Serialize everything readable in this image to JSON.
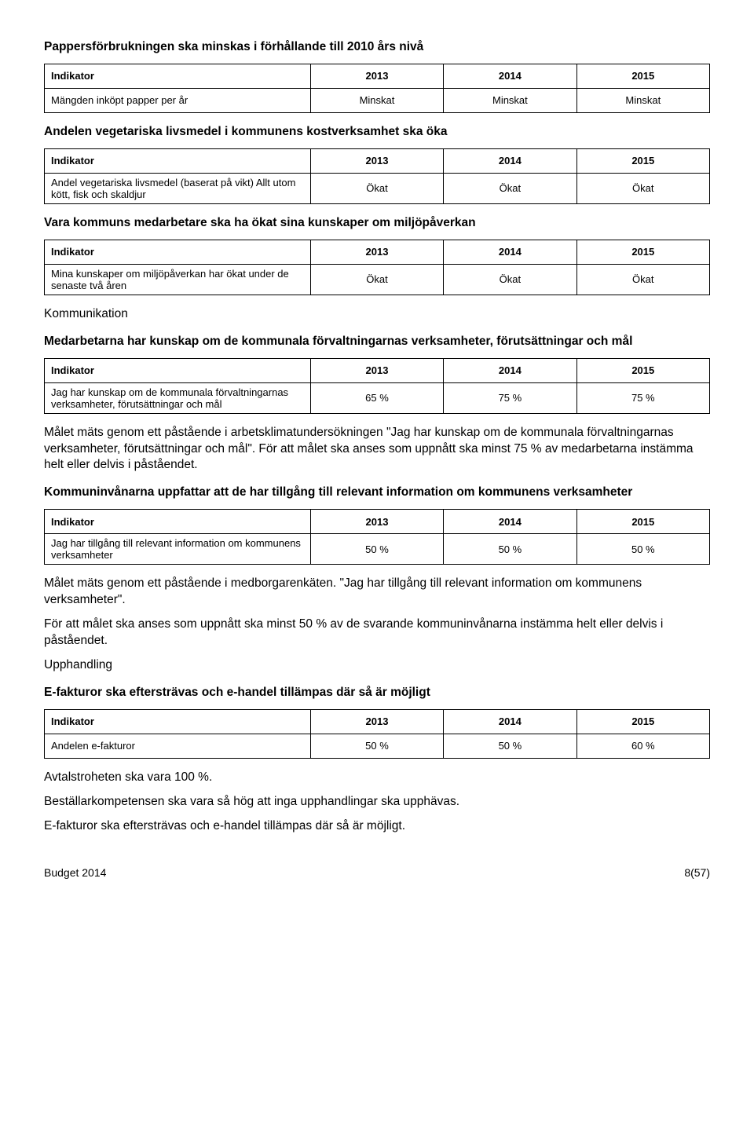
{
  "labels": {
    "indikator": "Indikator",
    "y2013": "2013",
    "y2014": "2014",
    "y2015": "2015"
  },
  "sec1": {
    "title": "Pappersförbrukningen ska minskas i förhållande till 2010 års nivå",
    "row": {
      "label": "Mängden inköpt papper per år",
      "v2013": "Minskat",
      "v2014": "Minskat",
      "v2015": "Minskat"
    }
  },
  "sec2": {
    "title": "Andelen vegetariska livsmedel i kommunens kostverksamhet ska öka",
    "row": {
      "label": "Andel vegetariska livsmedel (baserat på vikt) Allt utom kött, fisk och skaldjur",
      "v2013": "Ökat",
      "v2014": "Ökat",
      "v2015": "Ökat"
    }
  },
  "sec3": {
    "title": "Vara kommuns medarbetare ska ha ökat sina kunskaper om miljöpåverkan",
    "row": {
      "label": "Mina kunskaper om miljöpåverkan har ökat under de senaste två åren",
      "v2013": "Ökat",
      "v2014": "Ökat",
      "v2015": "Ökat"
    }
  },
  "komm": {
    "label": "Kommunikation",
    "title": "Medarbetarna har kunskap om de kommunala förvaltningarnas verksamheter, förutsättningar och mål",
    "row": {
      "label": "Jag har kunskap om de kommunala förvaltningarnas verksamheter, förutsättningar och mål",
      "v2013": "65 %",
      "v2014": "75 %",
      "v2015": "75 %"
    },
    "para1": "Målet mäts genom ett påstående i arbetsklimatundersökningen \"Jag har kunskap om de kommunala förvaltningarnas verksamheter, förutsättningar och mål\". För att målet ska anses som uppnått ska minst 75 % av medarbetarna instämma helt eller delvis i påståendet.",
    "title2": "Kommuninvånarna uppfattar att de har tillgång till relevant information om kommunens verksamheter",
    "row2": {
      "label": "Jag har tillgång till relevant information om kommunens verksamheter",
      "v2013": "50 %",
      "v2014": "50 %",
      "v2015": "50 %"
    },
    "para2": "Målet mäts genom ett påstående i medborgarenkäten. \"Jag har tillgång till relevant information om kommunens verksamheter\".",
    "para3": "För att målet ska anses som uppnått ska minst 50 % av de svarande kommuninvånarna instämma helt eller delvis i påståendet."
  },
  "upp": {
    "label": "Upphandling",
    "title": "E-fakturor ska eftersträvas och e-handel tillämpas där så är möjligt",
    "row": {
      "label": "Andelen e-fakturor",
      "v2013": "50 %",
      "v2014": "50 %",
      "v2015": "60 %"
    },
    "p1": "Avtalstroheten ska vara 100 %.",
    "p2": "Beställarkompetensen ska vara så hög att inga upphandlingar ska upphävas.",
    "p3": "E-fakturor ska eftersträvas och e-handel tillämpas där så är möjligt."
  },
  "footer": {
    "left": "Budget 2014",
    "right": "8(57)"
  }
}
